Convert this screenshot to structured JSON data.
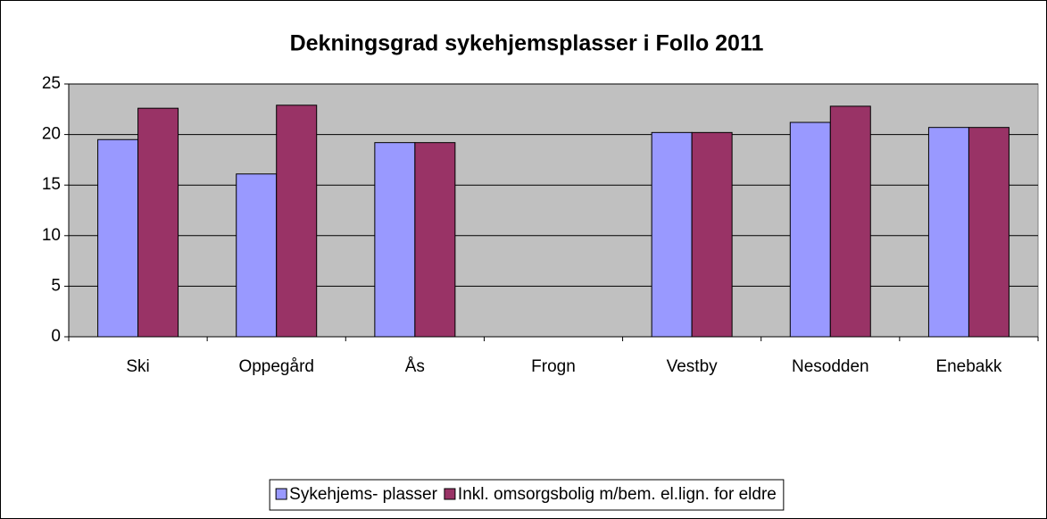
{
  "chart_data": {
    "type": "bar",
    "title": "Dekningsgrad sykehjemsplasser i Follo 2011",
    "categories": [
      "Ski",
      "Oppegård",
      "Ås",
      "Frogn",
      "Vestby",
      "Nesodden",
      "Enebakk"
    ],
    "series": [
      {
        "name": "Sykehjems- plasser",
        "color": "#9999ff",
        "values": [
          19.5,
          16.1,
          19.2,
          null,
          20.2,
          21.2,
          20.7
        ]
      },
      {
        "name": "Inkl. omsorgsbolig m/bem. el.lign. for eldre",
        "color": "#993366",
        "values": [
          22.6,
          22.9,
          19.2,
          null,
          20.2,
          22.8,
          20.7
        ]
      }
    ],
    "ylim": [
      0,
      25
    ],
    "yticks": [
      0,
      5,
      10,
      15,
      20,
      25
    ],
    "grid": true,
    "legend": "bottom"
  }
}
